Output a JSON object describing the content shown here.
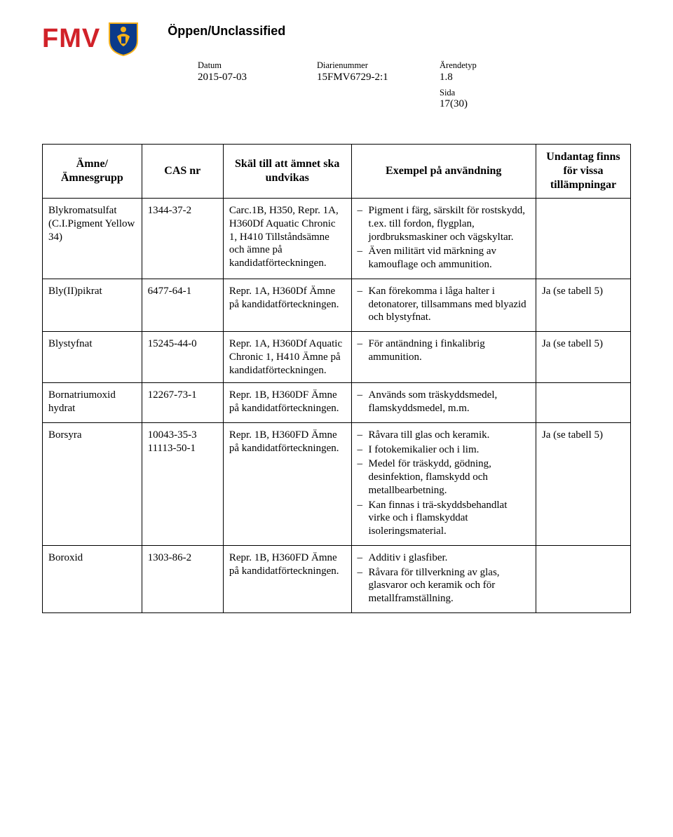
{
  "classification": "Öppen/Unclassified",
  "logo_text": "FMV",
  "meta": {
    "datum_label": "Datum",
    "datum_value": "2015-07-03",
    "diarie_label": "Diarienummer",
    "diarie_value": "15FMV6729-2:1",
    "arende_label": "Ärendetyp",
    "arende_value": "1.8",
    "sida_label": "Sida",
    "sida_value": "17(30)"
  },
  "headers": {
    "amne": "Ämne/\nÄmnesgrupp",
    "cas": "CAS nr",
    "skal": "Skäl till att ämnet ska undvikas",
    "exempel": "Exempel på användning",
    "undan": "Undantag finns för vissa tillämpningar"
  },
  "rows": [
    {
      "amne": "Blykromatsulfat (C.I.Pigment Yellow 34)",
      "cas": "1344-37-2",
      "skal": "Carc.1B, H350, Repr. 1A, H360Df Aquatic Chronic 1, H410 Tillståndsämne och ämne på kandidatförteckningen.",
      "exempel": [
        "Pigment i färg, särskilt för rostskydd, t.ex. till fordon, flygplan, jordbruksmaskiner och vägskyltar.",
        "Även militärt vid märkning av kamouflage och ammunition."
      ],
      "undan": ""
    },
    {
      "amne": "Bly(II)pikrat",
      "cas": "6477-64-1",
      "skal": "Repr. 1A, H360Df Ämne på kandidatförteckningen.",
      "exempel": [
        "Kan förekomma i låga halter i detonatorer, tillsammans med blyazid och blystyfnat."
      ],
      "undan": "Ja (se tabell 5)"
    },
    {
      "amne": "Blystyfnat",
      "cas": "15245-44-0",
      "skal": "Repr. 1A, H360Df Aquatic Chronic 1, H410 Ämne på kandidatförteckningen.",
      "exempel": [
        "För antändning i finkalibrig ammunition."
      ],
      "undan": "Ja (se tabell 5)"
    },
    {
      "amne": "Bornatriumoxid hydrat",
      "cas": "12267-73-1",
      "skal": "Repr. 1B, H360DF Ämne på kandidatförteckningen.",
      "exempel": [
        "Används som träskyddsmedel, flamskyddsmedel, m.m."
      ],
      "undan": ""
    },
    {
      "amne": "Borsyra",
      "cas": "10043-35-3 11113-50-1",
      "skal": "Repr. 1B, H360FD Ämne på kandidatförteckningen.",
      "exempel": [
        "Råvara till glas och keramik.",
        "I fotokemikalier och i lim.",
        "Medel för träskydd, gödning, desinfektion, flamskydd och metallbearbetning.",
        "Kan finnas i trä-skyddsbehandlat virke och i flamskyddat isoleringsmaterial."
      ],
      "undan": "Ja (se tabell 5)"
    },
    {
      "amne": "Boroxid",
      "cas": "1303-86-2",
      "skal": "Repr. 1B, H360FD Ämne på kandidatförteckningen.",
      "exempel": [
        "Additiv i glasfiber.",
        "Råvara för tillverkning av glas, glasvaror och keramik och för metallframställning."
      ],
      "undan": ""
    }
  ],
  "colors": {
    "brand_red": "#d12229",
    "crest_blue": "#0a3a8a",
    "crest_gold": "#f4b01a"
  }
}
